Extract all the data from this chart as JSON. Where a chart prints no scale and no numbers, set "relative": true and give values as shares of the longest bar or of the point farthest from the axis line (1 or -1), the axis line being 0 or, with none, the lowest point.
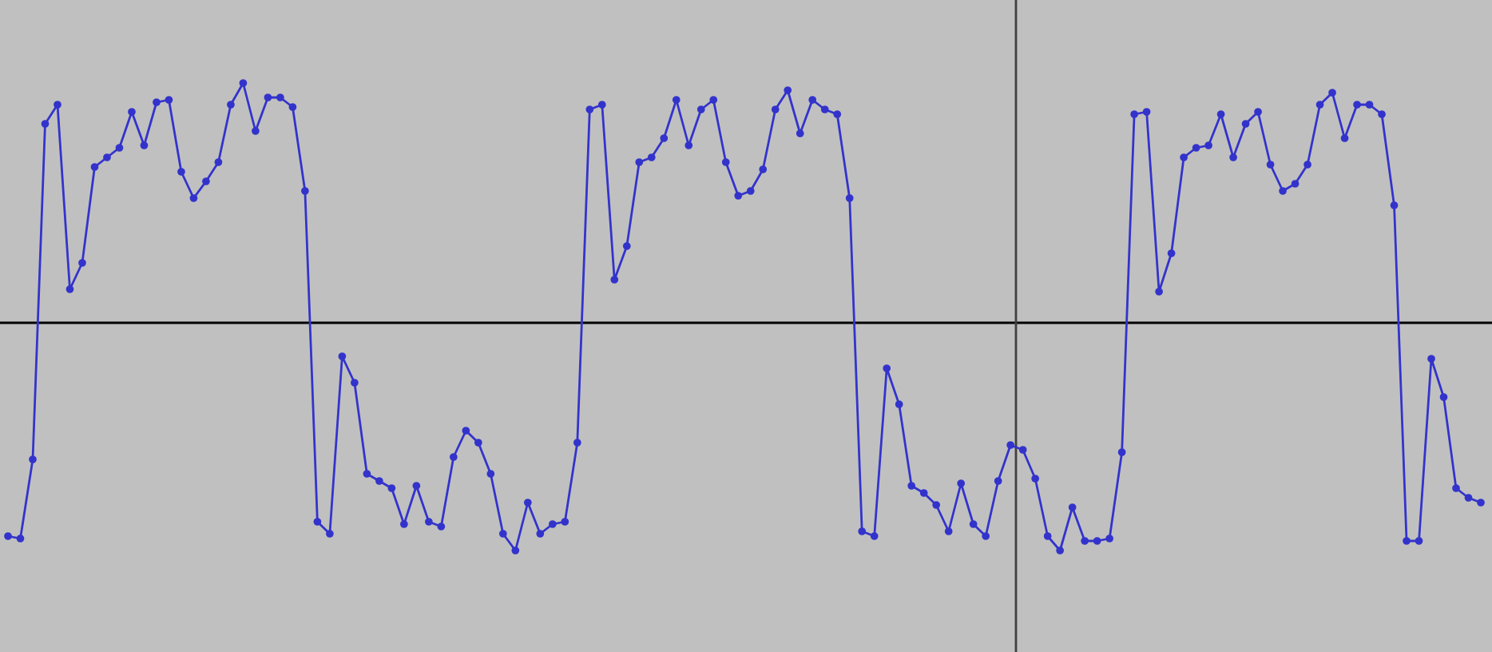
{
  "chart_data": {
    "type": "line",
    "relative": true,
    "marker": "circle",
    "line_style": "solid",
    "legend": false,
    "categories": [
      null,
      null,
      null,
      null,
      null,
      null,
      null,
      null,
      null,
      null,
      null,
      null,
      null,
      null,
      null,
      null,
      null,
      null,
      null,
      null,
      null,
      null,
      null,
      null,
      null,
      null,
      null,
      null,
      null,
      null,
      null,
      null,
      null,
      null,
      null,
      null,
      null,
      null,
      null,
      null,
      null,
      null,
      null,
      null,
      null,
      null,
      null,
      null,
      null,
      null,
      null,
      null,
      null,
      null,
      null,
      null,
      null,
      null,
      null,
      null,
      null,
      null,
      null,
      null,
      null,
      null,
      null,
      null,
      null,
      null,
      null,
      null,
      null,
      null,
      null,
      null,
      null,
      null,
      null,
      null,
      null,
      null,
      null,
      null,
      null,
      null,
      null,
      null,
      null,
      null,
      null,
      null,
      null,
      null,
      null,
      null,
      null,
      null,
      null,
      null,
      null,
      null,
      null,
      null,
      null,
      null,
      null,
      null,
      null,
      null,
      null,
      null,
      null,
      null,
      null,
      null,
      null,
      null,
      null,
      null
    ],
    "series": [
      {
        "color": "#3333cc",
        "values": [
          -0.89,
          -0.9,
          -0.57,
          0.83,
          0.91,
          0.14,
          0.25,
          0.65,
          0.69,
          0.73,
          0.88,
          0.74,
          0.92,
          0.93,
          0.63,
          0.52,
          0.59,
          0.67,
          0.91,
          1.0,
          0.8,
          0.94,
          0.94,
          0.9,
          0.55,
          -0.83,
          -0.88,
          -0.14,
          -0.25,
          -0.63,
          -0.66,
          -0.69,
          -0.84,
          -0.68,
          -0.83,
          -0.85,
          -0.56,
          -0.45,
          -0.5,
          -0.63,
          -0.88,
          -0.95,
          -0.75,
          -0.88,
          -0.84,
          -0.83,
          -0.5,
          0.89,
          0.91,
          0.18,
          0.32,
          0.67,
          0.69,
          0.77,
          0.93,
          0.74,
          0.89,
          0.93,
          0.67,
          0.53,
          0.55,
          0.64,
          0.89,
          0.97,
          0.79,
          0.93,
          0.89,
          0.87,
          0.52,
          -0.87,
          -0.89,
          -0.19,
          -0.34,
          -0.68,
          -0.71,
          -0.76,
          -0.87,
          -0.67,
          -0.84,
          -0.89,
          -0.66,
          -0.51,
          -0.53,
          -0.65,
          -0.89,
          -0.95,
          -0.77,
          -0.91,
          -0.91,
          -0.9,
          -0.54,
          0.87,
          0.88,
          0.13,
          0.29,
          0.69,
          0.73,
          0.74,
          0.87,
          0.69,
          0.83,
          0.88,
          0.66,
          0.55,
          0.58,
          0.66,
          0.91,
          0.96,
          0.77,
          0.91,
          0.91,
          0.87,
          0.49,
          -0.91,
          -0.91,
          -0.15,
          -0.31,
          -0.69,
          -0.73,
          -0.75
        ]
      }
    ]
  }
}
